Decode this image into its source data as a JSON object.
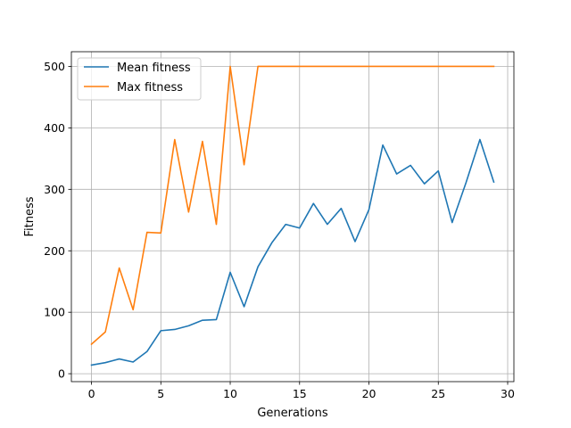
{
  "chart_data": {
    "type": "line",
    "xlabel": "Generations",
    "ylabel": "Fitness",
    "xlim": [
      -1.45,
      30.45
    ],
    "ylim": [
      -12.9,
      523.9
    ],
    "xticks": [
      0,
      5,
      10,
      15,
      20,
      25,
      30
    ],
    "yticks": [
      0,
      100,
      200,
      300,
      400,
      500
    ],
    "grid": true,
    "legend_position": "top-left",
    "x": [
      0,
      1,
      2,
      3,
      4,
      5,
      6,
      7,
      8,
      9,
      10,
      11,
      12,
      13,
      14,
      15,
      16,
      17,
      18,
      19,
      20,
      21,
      22,
      23,
      24,
      25,
      26,
      27,
      28,
      29
    ],
    "series": [
      {
        "name": "Mean fitness",
        "color": "#1f77b4",
        "values": [
          14,
          18,
          24,
          19,
          36,
          70,
          72,
          78,
          87,
          88,
          165,
          109,
          174,
          213,
          243,
          237,
          277,
          243,
          269,
          215,
          267,
          372,
          325,
          339,
          309,
          330,
          246,
          311,
          381,
          312
        ]
      },
      {
        "name": "Max fitness",
        "color": "#ff7f0e",
        "values": [
          48,
          68,
          172,
          104,
          230,
          229,
          381,
          263,
          378,
          243,
          500,
          340,
          500,
          500,
          500,
          500,
          500,
          500,
          500,
          500,
          500,
          500,
          500,
          500,
          500,
          500,
          500,
          500,
          500,
          500
        ]
      }
    ]
  }
}
